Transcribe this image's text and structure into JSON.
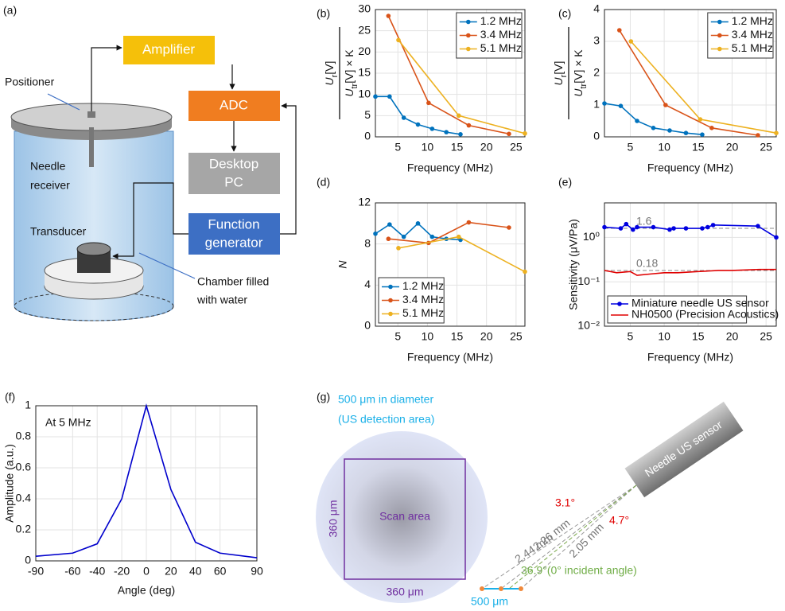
{
  "panel_a": {
    "label": "(a)",
    "amplifier": "Amplifier",
    "adc": "ADC",
    "desktop_pc": [
      "Desktop",
      "PC"
    ],
    "function_generator": [
      "Function",
      "generator"
    ],
    "positioner": "Positioner",
    "needle_receiver": [
      "Needle",
      "receiver"
    ],
    "transducer": "Transducer",
    "chamber": [
      "Chamber filled",
      "with water"
    ]
  },
  "chart_data": [
    {
      "type": "line",
      "label": "(b)",
      "ylabel": {
        "numerator": [
          "U",
          "r",
          "[V]"
        ],
        "denominator": [
          "U",
          "tr",
          "[V] × K"
        ]
      },
      "xlabel": "Frequency (MHz)",
      "xlim": [
        1.2,
        26.5
      ],
      "xticks": [
        5,
        10,
        15,
        20,
        25
      ],
      "ylim": [
        0,
        30
      ],
      "yticks": [
        0,
        5,
        10,
        15,
        20,
        25,
        30
      ],
      "grid": true,
      "legend": "upper right",
      "series": [
        {
          "name": "1.2 MHz",
          "color": "#0072bd",
          "markers": true,
          "x": [
            1.2,
            3.6,
            6,
            8.4,
            10.8,
            13.2,
            15.6
          ],
          "values": [
            9.5,
            9.5,
            4.5,
            2.9,
            1.9,
            1.1,
            0.6
          ]
        },
        {
          "name": "3.4 MHz",
          "color": "#d95319",
          "markers": true,
          "x": [
            3.4,
            10.2,
            17,
            23.8
          ],
          "values": [
            28.5,
            8,
            2.7,
            0.7
          ]
        },
        {
          "name": "5.1 MHz",
          "color": "#edb120",
          "markers": true,
          "x": [
            5.1,
            15.3,
            26.5
          ],
          "values": [
            22.8,
            5,
            0.8
          ]
        }
      ]
    },
    {
      "type": "line",
      "label": "(c)",
      "ylabel": {
        "numerator": [
          "U",
          "r",
          "[V]"
        ],
        "denominator": [
          "U",
          "tr",
          "[V] × K"
        ]
      },
      "xlabel": "Frequency (MHz)",
      "xlim": [
        1.2,
        26.5
      ],
      "xticks": [
        5,
        10,
        15,
        20,
        25
      ],
      "ylim": [
        0,
        4
      ],
      "yticks": [
        0,
        1,
        2,
        3,
        4
      ],
      "grid": true,
      "legend": "upper right",
      "series": [
        {
          "name": "1.2 MHz",
          "color": "#0072bd",
          "markers": true,
          "x": [
            1.2,
            3.6,
            6,
            8.4,
            10.8,
            13.2,
            15.6
          ],
          "values": [
            1.05,
            0.97,
            0.5,
            0.28,
            0.2,
            0.12,
            0.07
          ]
        },
        {
          "name": "3.4 MHz",
          "color": "#d95319",
          "markers": true,
          "x": [
            3.4,
            10.2,
            17,
            23.8
          ],
          "values": [
            3.35,
            1.0,
            0.28,
            0.05
          ]
        },
        {
          "name": "5.1 MHz",
          "color": "#edb120",
          "markers": true,
          "x": [
            5.1,
            15.3,
            26.5
          ],
          "values": [
            3.0,
            0.55,
            0.12
          ]
        }
      ]
    },
    {
      "type": "line",
      "label": "(d)",
      "ylabel": "N",
      "xlabel": "Frequency (MHz)",
      "xlim": [
        1.2,
        26.5
      ],
      "xticks": [
        5,
        10,
        15,
        20,
        25
      ],
      "ylim": [
        0,
        12
      ],
      "yticks": [
        0,
        4,
        8,
        12
      ],
      "grid": true,
      "legend": "lower left",
      "series": [
        {
          "name": "1.2 MHz",
          "color": "#0072bd",
          "markers": true,
          "x": [
            1.2,
            3.6,
            6,
            8.4,
            10.8,
            13.2,
            15.6
          ],
          "values": [
            9.0,
            9.9,
            8.7,
            10.0,
            8.7,
            8.5,
            8.4
          ]
        },
        {
          "name": "3.4 MHz",
          "color": "#d95319",
          "markers": true,
          "x": [
            3.4,
            10.2,
            17,
            23.8
          ],
          "values": [
            8.5,
            8.1,
            10.1,
            9.6
          ]
        },
        {
          "name": "5.1 MHz",
          "color": "#edb120",
          "markers": true,
          "x": [
            5.1,
            15.3,
            26.5
          ],
          "values": [
            7.6,
            8.7,
            5.3
          ]
        }
      ]
    },
    {
      "type": "line",
      "label": "(e)",
      "ylabel": "Sensitivity (μV/Pa)",
      "xlabel": "Frequency (MHz)",
      "yscale": "log",
      "xlim": [
        1.2,
        26.5
      ],
      "xticks": [
        5,
        10,
        15,
        20,
        25
      ],
      "ylim": [
        0.01,
        6
      ],
      "yticks": [
        {
          "value": 0.01,
          "label": "10⁻²"
        },
        {
          "value": 0.1,
          "label": "10⁻¹"
        },
        {
          "value": 1,
          "label": "10⁰"
        }
      ],
      "grid": true,
      "legend": "lower left",
      "ref_lines": [
        1.6,
        0.18
      ],
      "series": [
        {
          "name": "Miniature needle US sensor",
          "color": "#0000e0",
          "markers": true,
          "x": [
            1.2,
            3.6,
            4.4,
            5.4,
            6,
            8.4,
            10.8,
            11.4,
            13.2,
            15.6,
            16.4,
            17.2,
            23.8,
            26.5
          ],
          "values": [
            1.7,
            1.6,
            2.0,
            1.5,
            1.7,
            1.7,
            1.5,
            1.6,
            1.6,
            1.6,
            1.7,
            1.9,
            1.8,
            1.0
          ]
        },
        {
          "name": "NH0500 (Precision Acoustics)",
          "color": "#e00000",
          "markers": false,
          "x": [
            1.2,
            3,
            5,
            6,
            8,
            10,
            12,
            15,
            18,
            20,
            24,
            26.5
          ],
          "values": [
            0.18,
            0.16,
            0.17,
            0.14,
            0.15,
            0.16,
            0.16,
            0.17,
            0.18,
            0.18,
            0.19,
            0.19
          ]
        }
      ]
    },
    {
      "type": "line",
      "label": "(f)",
      "ylabel": "Amplitude (a.u.)",
      "xlabel": "Angle (deg)",
      "annotation": "At 5 MHz",
      "xlim": [
        -90,
        90
      ],
      "xticks": [
        -90,
        -60,
        -40,
        -20,
        0,
        20,
        40,
        60,
        90
      ],
      "ylim": [
        0,
        1
      ],
      "yticks": [
        0,
        0.2,
        0.4,
        0.6,
        0.8,
        1
      ],
      "grid": true,
      "series": [
        {
          "color": "#0000cc",
          "markers": false,
          "x": [
            -90,
            -60,
            -40,
            -20,
            0,
            20,
            40,
            60,
            90
          ],
          "values": [
            0.03,
            0.05,
            0.11,
            0.4,
            1.0,
            0.46,
            0.12,
            0.05,
            0.02
          ]
        }
      ]
    }
  ],
  "panel_g": {
    "label": "(g)",
    "detection_area": [
      "500 μm in diameter",
      "(US detection area)"
    ],
    "scan_area": "Scan area",
    "scan_height": "360 μm",
    "scan_width": "360 μm",
    "sensor": "Needle US sensor",
    "angles": [
      "3.1°",
      "4.7°"
    ],
    "distances": [
      "2.44 mm",
      "2.26 mm",
      "2.05 mm"
    ],
    "normal_angle": "36.9°(0° incident angle)",
    "aperture": "500 μm"
  }
}
